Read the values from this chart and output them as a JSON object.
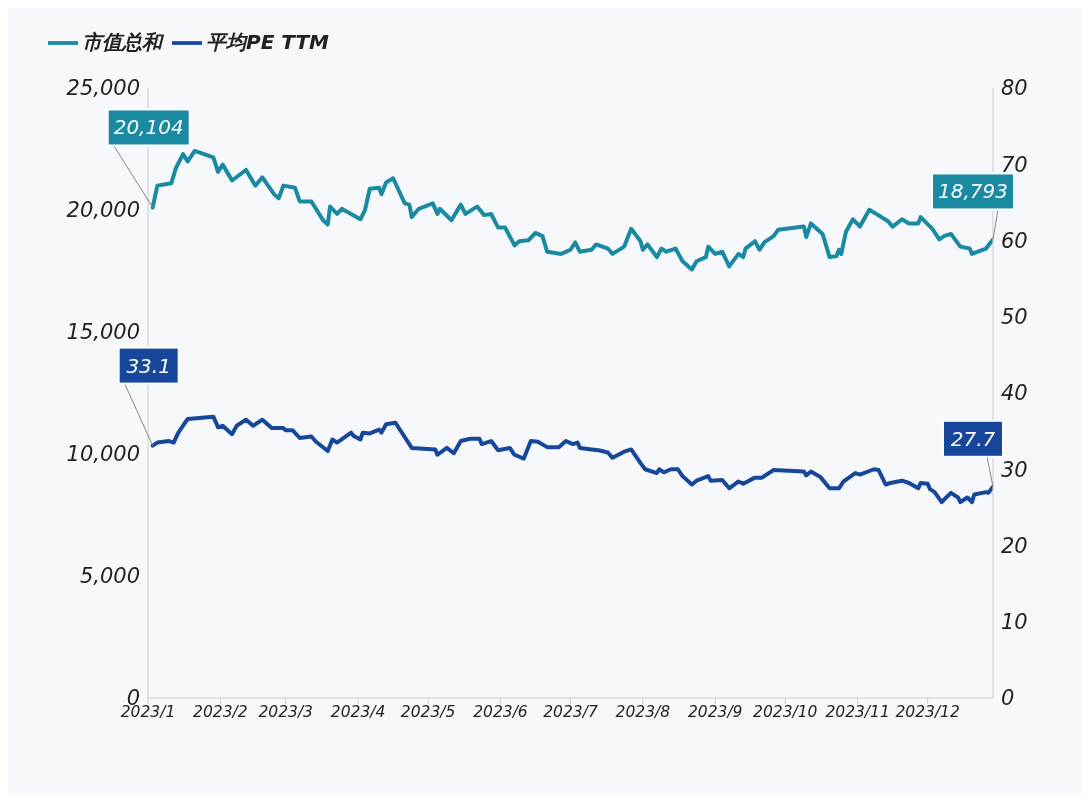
{
  "chart_data": {
    "type": "line",
    "legend": "top left",
    "marker": "none",
    "line_style": "solid",
    "xlim": [
      "2023-01-01",
      "2023-12-29"
    ],
    "xticks": [
      {
        "value": "2023-01-01",
        "label": "2023/1"
      },
      {
        "value": "2023-02-01",
        "label": "2023/2"
      },
      {
        "value": "2023-03-01",
        "label": "2023/3"
      },
      {
        "value": "2023-04-01",
        "label": "2023/4"
      },
      {
        "value": "2023-05-01",
        "label": "2023/5"
      },
      {
        "value": "2023-06-01",
        "label": "2023/6"
      },
      {
        "value": "2023-07-01",
        "label": "2023/7"
      },
      {
        "value": "2023-08-01",
        "label": "2023/8"
      },
      {
        "value": "2023-09-01",
        "label": "2023/9"
      },
      {
        "value": "2023-10-01",
        "label": "2023/10"
      },
      {
        "value": "2023-11-01",
        "label": "2023/11"
      },
      {
        "value": "2023-12-01",
        "label": "2023/12"
      }
    ],
    "ylim": [
      0,
      25000
    ],
    "yticks": [
      0,
      {
        "value": 5000,
        "label": "5,000"
      },
      {
        "value": 10000,
        "label": "10,000"
      },
      {
        "value": 15000,
        "label": "15,000"
      },
      {
        "value": 20000,
        "label": "20,000"
      },
      {
        "value": 25000,
        "label": "25,000"
      }
    ],
    "y2lim": [
      0,
      80
    ],
    "y2ticks": [
      0,
      10,
      20,
      30,
      40,
      50,
      60,
      70,
      80
    ],
    "series": [
      {
        "name": "市值总和",
        "color": "#1a8aa3",
        "x": [
          "2023-01-03",
          "2023-01-05",
          "2023-01-11",
          "2023-01-13",
          "2023-01-16",
          "2023-01-18",
          "2023-01-21",
          "2023-01-29",
          "2023-01-31",
          "2023-02-02",
          "2023-02-06",
          "2023-02-12",
          "2023-02-16",
          "2023-02-19",
          "2023-02-24",
          "2023-02-26",
          "2023-02-28",
          "2023-03-05",
          "2023-03-07",
          "2023-03-12",
          "2023-03-17",
          "2023-03-19",
          "2023-03-20",
          "2023-03-23",
          "2023-03-25",
          "2023-04-02",
          "2023-04-04",
          "2023-04-06",
          "2023-04-10",
          "2023-04-11",
          "2023-04-13",
          "2023-04-16",
          "2023-04-21",
          "2023-04-23",
          "2023-04-24",
          "2023-04-27",
          "2023-05-03",
          "2023-05-05",
          "2023-05-06",
          "2023-05-11",
          "2023-05-15",
          "2023-05-17",
          "2023-05-22",
          "2023-05-25",
          "2023-05-28",
          "2023-05-31",
          "2023-06-03",
          "2023-06-07",
          "2023-06-09",
          "2023-06-13",
          "2023-06-16",
          "2023-06-19",
          "2023-06-21",
          "2023-06-27",
          "2023-07-01",
          "2023-07-03",
          "2023-07-05",
          "2023-07-10",
          "2023-07-12",
          "2023-07-17",
          "2023-07-19",
          "2023-07-24",
          "2023-07-27",
          "2023-07-31",
          "2023-08-01",
          "2023-08-03",
          "2023-08-07",
          "2023-08-09",
          "2023-08-11",
          "2023-08-15",
          "2023-08-18",
          "2023-08-22",
          "2023-08-24",
          "2023-08-28",
          "2023-08-29",
          "2023-09-01",
          "2023-09-04",
          "2023-09-07",
          "2023-09-11",
          "2023-09-13",
          "2023-09-14",
          "2023-09-18",
          "2023-09-20",
          "2023-09-22",
          "2023-09-26",
          "2023-09-28",
          "2023-10-09",
          "2023-10-10",
          "2023-10-12",
          "2023-10-17",
          "2023-10-20",
          "2023-10-23",
          "2023-10-24",
          "2023-10-25",
          "2023-10-27",
          "2023-10-30",
          "2023-11-02",
          "2023-11-06",
          "2023-11-09",
          "2023-11-14",
          "2023-11-16",
          "2023-11-20",
          "2023-11-23",
          "2023-11-27",
          "2023-11-28",
          "2023-12-03",
          "2023-12-06",
          "2023-12-08",
          "2023-12-11",
          "2023-12-15",
          "2023-12-19",
          "2023-12-20",
          "2023-12-26",
          "2023-12-29"
        ],
        "values": [
          20104,
          21000,
          21100,
          21730,
          22290,
          21990,
          22420,
          22160,
          21560,
          21860,
          21210,
          21640,
          21000,
          21340,
          20650,
          20480,
          21000,
          20910,
          20350,
          20350,
          19580,
          19410,
          20140,
          19840,
          20050,
          19620,
          20010,
          20870,
          20910,
          20650,
          21130,
          21300,
          20270,
          20220,
          19710,
          20050,
          20270,
          19840,
          20050,
          19580,
          20220,
          19840,
          20140,
          19790,
          19840,
          19280,
          19280,
          18550,
          18720,
          18760,
          19060,
          18930,
          18290,
          18200,
          18370,
          18670,
          18290,
          18370,
          18590,
          18420,
          18200,
          18500,
          19230,
          18720,
          18370,
          18590,
          18070,
          18420,
          18290,
          18420,
          17900,
          17560,
          17900,
          18070,
          18500,
          18200,
          18290,
          17690,
          18200,
          18070,
          18420,
          18720,
          18370,
          18670,
          18930,
          19190,
          19320,
          18890,
          19450,
          19020,
          18070,
          18110,
          18370,
          18200,
          19110,
          19620,
          19320,
          20010,
          19840,
          19540,
          19320,
          19620,
          19450,
          19450,
          19710,
          19230,
          18800,
          18930,
          19020,
          18500,
          18420,
          18200,
          18420,
          18793
        ],
        "value_labels": [
          "20,104",
          null,
          null,
          null,
          null,
          null,
          null,
          null,
          null,
          null,
          null,
          null,
          null,
          null,
          null,
          null,
          null,
          null,
          null,
          null,
          null,
          null,
          null,
          null,
          null,
          null,
          null,
          null,
          null,
          null,
          null,
          null,
          null,
          null,
          null,
          null,
          null,
          null,
          null,
          null,
          null,
          null,
          null,
          null,
          null,
          null,
          null,
          null,
          null,
          null,
          null,
          null,
          null,
          null,
          null,
          null,
          null,
          null,
          null,
          null,
          null,
          null,
          null,
          null,
          null,
          null,
          null,
          null,
          null,
          null,
          null,
          null,
          null,
          null,
          null,
          null,
          null,
          null,
          null,
          null,
          null,
          null,
          null,
          null,
          null,
          null,
          null,
          null,
          null,
          null,
          null,
          null,
          null,
          null,
          null,
          null,
          null,
          null,
          null,
          null,
          null,
          null,
          null,
          null,
          null,
          null,
          null,
          null,
          null,
          null,
          null,
          null,
          null,
          "18,793"
        ]
      },
      {
        "name": "平均PE TTM",
        "color": "#17479a",
        "axis": "y2",
        "x": [
          "2023-01-03",
          "2023-01-05",
          "2023-01-10",
          "2023-01-12",
          "2023-01-14",
          "2023-01-18",
          "2023-01-29",
          "2023-01-31",
          "2023-02-02",
          "2023-02-06",
          "2023-02-08",
          "2023-02-12",
          "2023-02-15",
          "2023-02-19",
          "2023-02-23",
          "2023-02-28",
          "2023-03-01",
          "2023-03-04",
          "2023-03-07",
          "2023-03-12",
          "2023-03-14",
          "2023-03-19",
          "2023-03-21",
          "2023-03-23",
          "2023-03-29",
          "2023-03-30",
          "2023-04-02",
          "2023-04-03",
          "2023-04-06",
          "2023-04-10",
          "2023-04-11",
          "2023-04-13",
          "2023-04-17",
          "2023-04-24",
          "2023-05-04",
          "2023-05-05",
          "2023-05-09",
          "2023-05-12",
          "2023-05-15",
          "2023-05-19",
          "2023-05-23",
          "2023-05-24",
          "2023-05-28",
          "2023-05-31",
          "2023-06-05",
          "2023-06-07",
          "2023-06-11",
          "2023-06-14",
          "2023-06-17",
          "2023-06-21",
          "2023-06-26",
          "2023-06-29",
          "2023-07-02",
          "2023-07-04",
          "2023-07-05",
          "2023-07-10",
          "2023-07-13",
          "2023-07-17",
          "2023-07-19",
          "2023-07-24",
          "2023-07-27",
          "2023-07-31",
          "2023-08-02",
          "2023-08-07",
          "2023-08-08",
          "2023-08-10",
          "2023-08-13",
          "2023-08-16",
          "2023-08-18",
          "2023-08-22",
          "2023-08-24",
          "2023-08-29",
          "2023-08-30",
          "2023-09-04",
          "2023-09-07",
          "2023-09-11",
          "2023-09-13",
          "2023-09-18",
          "2023-09-21",
          "2023-09-26",
          "2023-10-09",
          "2023-10-10",
          "2023-10-12",
          "2023-10-16",
          "2023-10-20",
          "2023-10-24",
          "2023-10-26",
          "2023-10-31",
          "2023-11-02",
          "2023-11-08",
          "2023-11-10",
          "2023-11-13",
          "2023-11-15",
          "2023-11-20",
          "2023-11-23",
          "2023-11-27",
          "2023-11-28",
          "2023-12-01",
          "2023-12-02",
          "2023-12-04",
          "2023-12-07",
          "2023-12-11",
          "2023-12-14",
          "2023-12-15",
          "2023-12-18",
          "2023-12-20",
          "2023-12-21",
          "2023-12-26",
          "2023-12-27",
          "2023-12-29"
        ],
        "values": [
          33.1,
          33.5,
          33.7,
          33.5,
          34.8,
          36.6,
          36.9,
          35.5,
          35.7,
          34.6,
          35.7,
          36.5,
          35.7,
          36.5,
          35.4,
          35.4,
          35.1,
          35.1,
          34.1,
          34.3,
          33.6,
          32.4,
          33.9,
          33.5,
          34.8,
          34.4,
          33.9,
          34.8,
          34.7,
          35.2,
          34.8,
          35.9,
          36.1,
          32.8,
          32.6,
          31.9,
          32.8,
          32.1,
          33.7,
          34.0,
          34.0,
          33.3,
          33.7,
          32.5,
          32.8,
          31.9,
          31.4,
          33.7,
          33.6,
          32.9,
          32.9,
          33.7,
          33.3,
          33.5,
          32.8,
          32.6,
          32.5,
          32.2,
          31.5,
          32.3,
          32.6,
          30.8,
          30.0,
          29.5,
          30.0,
          29.6,
          30.0,
          30.0,
          29.1,
          28.0,
          28.5,
          29.1,
          28.5,
          28.6,
          27.5,
          28.4,
          28.1,
          28.9,
          28.9,
          29.9,
          29.7,
          29.2,
          29.7,
          29.0,
          27.5,
          27.5,
          28.4,
          29.5,
          29.3,
          30.0,
          29.9,
          28.0,
          28.2,
          28.5,
          28.2,
          27.5,
          28.2,
          28.1,
          27.4,
          27.0,
          25.7,
          26.9,
          26.3,
          25.7,
          26.3,
          25.7,
          26.7,
          27.0,
          26.9,
          27.7
        ],
        "value_labels": [
          "33.1",
          null,
          null,
          null,
          null,
          null,
          null,
          null,
          null,
          null,
          null,
          null,
          null,
          null,
          null,
          null,
          null,
          null,
          null,
          null,
          null,
          null,
          null,
          null,
          null,
          null,
          null,
          null,
          null,
          null,
          null,
          null,
          null,
          null,
          null,
          null,
          null,
          null,
          null,
          null,
          null,
          null,
          null,
          null,
          null,
          null,
          null,
          null,
          null,
          null,
          null,
          null,
          null,
          null,
          null,
          null,
          null,
          null,
          null,
          null,
          null,
          null,
          null,
          null,
          null,
          null,
          null,
          null,
          null,
          null,
          null,
          null,
          null,
          null,
          null,
          null,
          null,
          null,
          null,
          null,
          null,
          null,
          null,
          null,
          null,
          null,
          null,
          null,
          null,
          null,
          null,
          null,
          null,
          null,
          null,
          null,
          null,
          null,
          null,
          null,
          null,
          null,
          null,
          null,
          null,
          null,
          null,
          null,
          null,
          "27.7"
        ]
      }
    ]
  }
}
